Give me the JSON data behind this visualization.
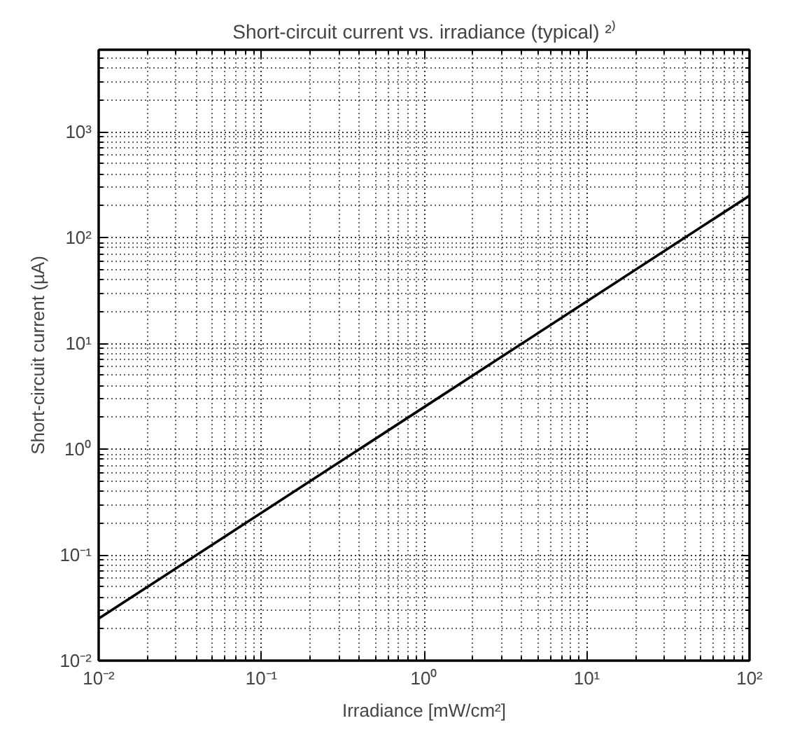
{
  "chart_data": {
    "type": "line",
    "title": "Short-circuit current vs. irradiance (typical) ²⁾",
    "xlabel": "Irradiance [mW/cm²]",
    "ylabel": "Short-circuit current (µA)",
    "x": [
      0.01,
      1,
      100
    ],
    "series": [
      {
        "color": "#000000",
        "values": [
          0.025,
          2.5,
          250
        ]
      }
    ],
    "log": "xy",
    "xlim": [
      0.01,
      100
    ],
    "ylim": [
      0.01,
      6000
    ],
    "xticks": [
      {
        "value": 0.01,
        "label": "10⁻²"
      },
      {
        "value": 0.1,
        "label": "10⁻¹"
      },
      {
        "value": 1,
        "label": "10⁰"
      },
      {
        "value": 10,
        "label": "10¹"
      },
      {
        "value": 100,
        "label": "10²"
      }
    ],
    "yticks": [
      {
        "value": 0.01,
        "label": "10⁻²"
      },
      {
        "value": 0.1,
        "label": "10⁻¹"
      },
      {
        "value": 1,
        "label": "10⁰"
      },
      {
        "value": 10,
        "label": "10¹"
      },
      {
        "value": 100,
        "label": "10²"
      },
      {
        "value": 1000,
        "label": "10³"
      }
    ],
    "grid": true,
    "line_style": "solid",
    "marker": "none"
  }
}
